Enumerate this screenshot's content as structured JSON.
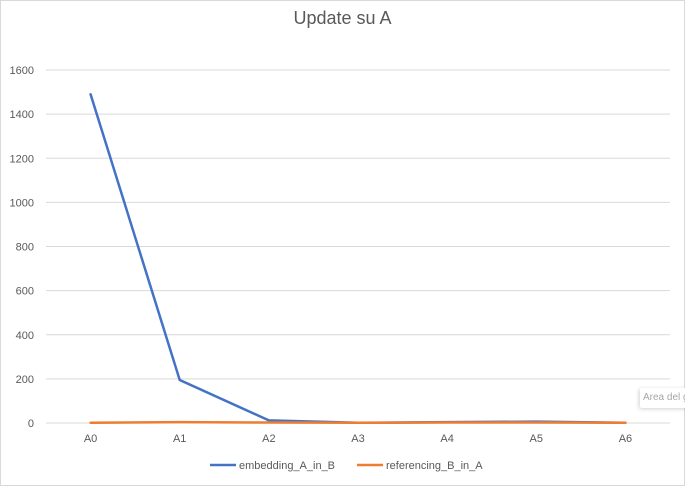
{
  "chart_data": {
    "type": "line",
    "title": "Update su A",
    "categories": [
      "A0",
      "A1",
      "A2",
      "A3",
      "A4",
      "A5",
      "A6"
    ],
    "ylim": [
      0,
      1600
    ],
    "yticks": [
      "0",
      "200",
      "400",
      "600",
      "800",
      "1000",
      "1200",
      "1400",
      "1600"
    ],
    "grid": true,
    "legend_position": "bottom",
    "series": [
      {
        "name": "embedding_A_in_B",
        "color": "#4472c4",
        "values": [
          1490,
          195,
          12,
          1,
          4,
          6,
          1
        ]
      },
      {
        "name": "referencing_B_in_A",
        "color": "#ed7d31",
        "values": [
          1,
          4,
          2,
          1,
          2,
          2,
          1
        ]
      }
    ]
  },
  "tooltip": {
    "text": "Area del grafico"
  }
}
